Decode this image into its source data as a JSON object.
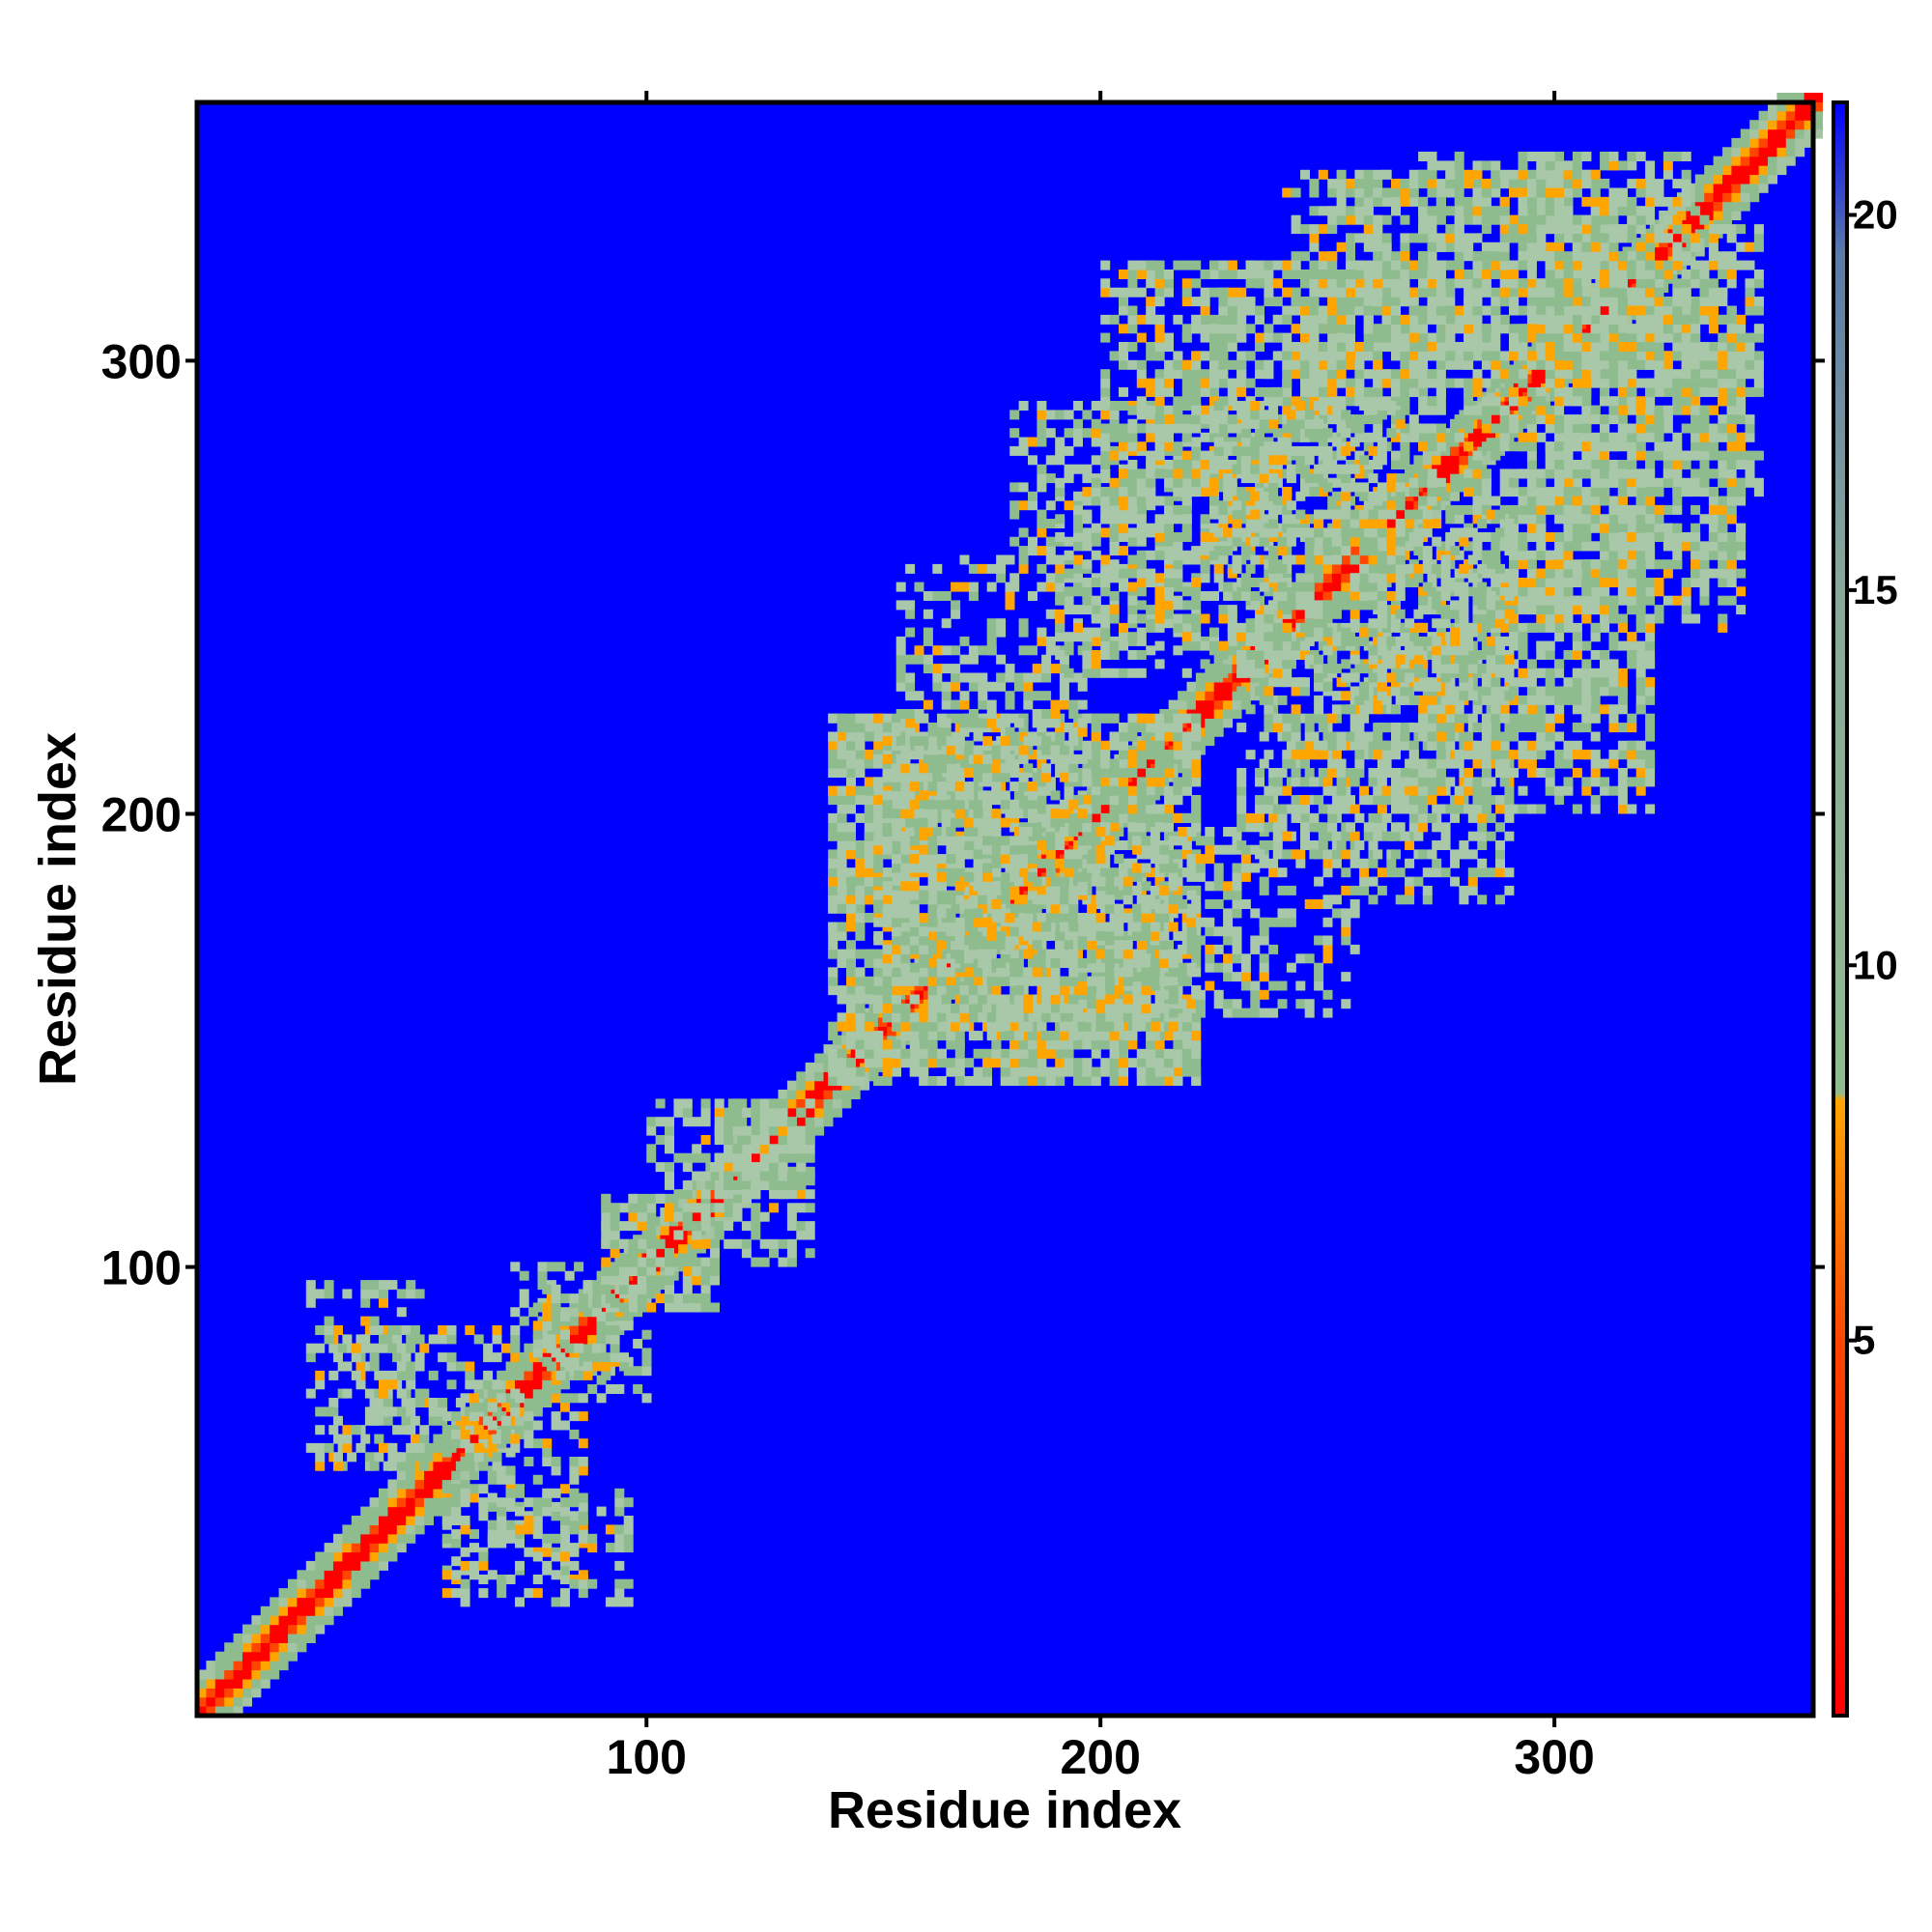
{
  "chart_data": {
    "type": "heatmap",
    "title": "",
    "xlabel": "Residue index",
    "ylabel": "Residue index",
    "xlim": [
      1,
      357
    ],
    "ylim": [
      1,
      357
    ],
    "xticks": [
      100,
      200,
      300
    ],
    "yticks": [
      100,
      200,
      300
    ],
    "colorbar": {
      "range": [
        0,
        21.5
      ],
      "ticks": [
        5,
        10,
        15,
        20
      ],
      "stops": [
        {
          "value": 0,
          "color": "#ff0000"
        },
        {
          "value": 5,
          "color": "#ff4500"
        },
        {
          "value": 8.2,
          "color": "#ffa500"
        },
        {
          "value": 8.3,
          "color": "#8fbc8f"
        },
        {
          "value": 15,
          "color": "#8aa89a"
        },
        {
          "value": 19.5,
          "color": "#5a7aa8"
        },
        {
          "value": 21.5,
          "color": "#0000ff"
        }
      ]
    },
    "background_value": 21.5,
    "colors": {
      "background": "#0000ff",
      "diagonal": "#ff0000",
      "near_diagonal": "#ffa500",
      "contact": "#8fbc8f"
    },
    "contact_regions": [
      {
        "x": [
          5,
          60
        ],
        "y": [
          5,
          60
        ],
        "type": "diagonal-band"
      },
      {
        "x": [
          30,
          70
        ],
        "y": [
          55,
          85
        ],
        "intensity": 0.4
      },
      {
        "x": [
          55,
          95
        ],
        "y": [
          25,
          50
        ],
        "intensity": 0.35
      },
      {
        "x": [
          70,
          95
        ],
        "y": [
          75,
          100
        ],
        "intensity": 0.4
      },
      {
        "x": [
          90,
          115
        ],
        "y": [
          90,
          115
        ],
        "intensity": 0.5
      },
      {
        "x": [
          100,
          120
        ],
        "y": [
          115,
          135
        ],
        "intensity": 0.5
      },
      {
        "x": [
          115,
          135
        ],
        "y": [
          115,
          135
        ],
        "intensity": 0.6
      },
      {
        "x": [
          140,
          220
        ],
        "y": [
          140,
          220
        ],
        "intensity": 0.6
      },
      {
        "x": [
          155,
          195
        ],
        "y": [
          195,
          235
        ],
        "intensity": 0.5
      },
      {
        "x": [
          165,
          215
        ],
        "y": [
          150,
          185
        ],
        "intensity": 0.5
      },
      {
        "x": [
          180,
          240
        ],
        "y": [
          235,
          290
        ],
        "intensity": 0.45
      },
      {
        "x": [
          210,
          275
        ],
        "y": [
          270,
          320
        ],
        "intensity": 0.45
      },
      {
        "x": [
          240,
          310
        ],
        "y": [
          300,
          340
        ],
        "intensity": 0.45
      },
      {
        "x": [
          230,
          275
        ],
        "y": [
          190,
          240
        ],
        "intensity": 0.45
      },
      {
        "x": [
          260,
          320
        ],
        "y": [
          200,
          260
        ],
        "intensity": 0.45
      },
      {
        "x": [
          280,
          340
        ],
        "y": [
          250,
          300
        ],
        "intensity": 0.45
      },
      {
        "x": [
          300,
          345
        ],
        "y": [
          290,
          330
        ],
        "intensity": 0.45
      },
      {
        "x": [
          225,
          265
        ],
        "y": [
          245,
          290
        ],
        "intensity": 0.45
      },
      {
        "x": [
          270,
          320
        ],
        "y": [
          300,
          345
        ],
        "intensity": 0.45
      },
      {
        "x": [
          235,
          255
        ],
        "y": [
          155,
          180
        ],
        "intensity": 0.3
      }
    ]
  }
}
